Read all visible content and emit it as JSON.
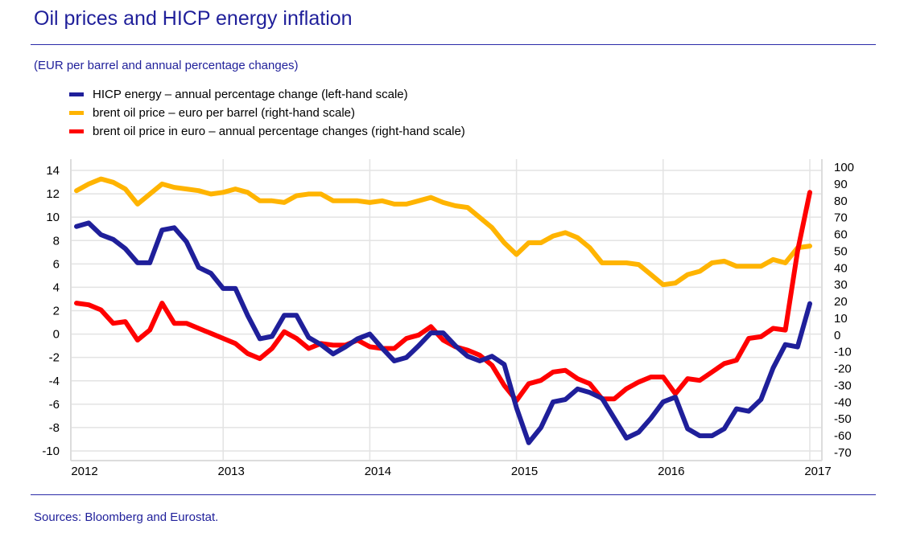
{
  "title": "Oil prices and HICP energy inflation",
  "subtitle": "(EUR per barrel and annual percentage changes)",
  "sources": "Sources: Bloomberg and Eurostat.",
  "legend": [
    {
      "label": "HICP energy – annual percentage change (left-hand scale)",
      "color": "#1f1f9a"
    },
    {
      "label": "brent oil price – euro per barrel (right-hand scale)",
      "color": "#ffb400"
    },
    {
      "label": "brent oil price in euro – annual percentage changes (right-hand scale)",
      "color": "#ff0000"
    }
  ],
  "chart_data": {
    "type": "line",
    "title": "Oil prices and HICP energy inflation",
    "subtitle": "(EUR per barrel and annual percentage changes)",
    "x_ticks": [
      "2012",
      "2013",
      "2014",
      "2015",
      "2016",
      "2017"
    ],
    "x_start": "2012-01",
    "frequency": "monthly",
    "left_axis": {
      "ylim": [
        -10,
        14
      ],
      "ticks": [
        "14",
        "12",
        "10",
        "8",
        "6",
        "4",
        "2",
        "0",
        "-2",
        "-4",
        "-6",
        "-8",
        "-10"
      ]
    },
    "right_axis": {
      "ylim": [
        -70,
        100
      ],
      "ticks": [
        "100",
        "90",
        "80",
        "70",
        "60",
        "50",
        "40",
        "30",
        "20",
        "10",
        "0",
        "-10",
        "-20",
        "-30",
        "-40",
        "-50",
        "-60",
        "-70"
      ]
    },
    "grid": true,
    "legend_position": "top-left",
    "series": [
      {
        "name": "HICP energy – annual percentage change (left-hand scale)",
        "axis": "left",
        "color": "#1f1f9a",
        "values": [
          9.2,
          9.5,
          8.5,
          8.1,
          7.3,
          6.1,
          6.1,
          8.9,
          9.1,
          7.9,
          5.7,
          5.2,
          3.9,
          3.9,
          1.6,
          -0.4,
          -0.2,
          1.6,
          1.6,
          -0.3,
          -0.9,
          -1.7,
          -1.1,
          -0.4,
          0.0,
          -1.2,
          -2.3,
          -2.0,
          -1.0,
          0.1,
          0.1,
          -1.0,
          -1.9,
          -2.3,
          -1.9,
          -2.6,
          -6.3,
          -9.3,
          -8.0,
          -5.8,
          -5.6,
          -4.7,
          -5.0,
          -5.5,
          -7.2,
          -8.9,
          -8.4,
          -7.2,
          -5.8,
          -5.4,
          -8.1,
          -8.7,
          -8.7,
          -8.1,
          -6.4,
          -6.6,
          -5.6,
          -2.9,
          -0.9,
          -1.1,
          2.6
        ]
      },
      {
        "name": "brent oil price – euro per barrel (right-hand scale)",
        "axis": "right",
        "color": "#ffb400",
        "values": [
          86,
          90,
          93,
          91,
          87,
          78,
          84,
          90,
          88,
          87,
          86,
          84,
          85,
          87,
          85,
          80,
          80,
          79,
          83,
          84,
          84,
          80,
          80,
          80,
          79,
          80,
          78,
          78,
          80,
          82,
          79,
          77,
          76,
          70,
          64,
          55,
          48,
          55,
          55,
          59,
          61,
          58,
          52,
          43,
          43,
          43,
          42,
          36,
          30,
          31,
          36,
          38,
          43,
          44,
          41,
          41,
          41,
          45,
          43,
          52,
          53
        ]
      },
      {
        "name": "brent oil price in euro – annual percentage changes (right-hand scale)",
        "axis": "right",
        "color": "#ff0000",
        "values": [
          19,
          18,
          15,
          7,
          8,
          -3,
          3,
          19,
          7,
          7,
          4,
          1,
          -2,
          -5,
          -11,
          -14,
          -8,
          2,
          -2,
          -8,
          -5,
          -6,
          -6,
          -3,
          -7,
          -8,
          -8,
          -2,
          0,
          5,
          -3,
          -7,
          -9,
          -12,
          -18,
          -30,
          -39,
          -29,
          -27,
          -22,
          -21,
          -26,
          -29,
          -38,
          -38,
          -32,
          -28,
          -25,
          -25,
          -35,
          -26,
          -27,
          -22,
          -17,
          -15,
          -2,
          -1,
          4,
          3,
          50,
          85
        ]
      }
    ]
  }
}
